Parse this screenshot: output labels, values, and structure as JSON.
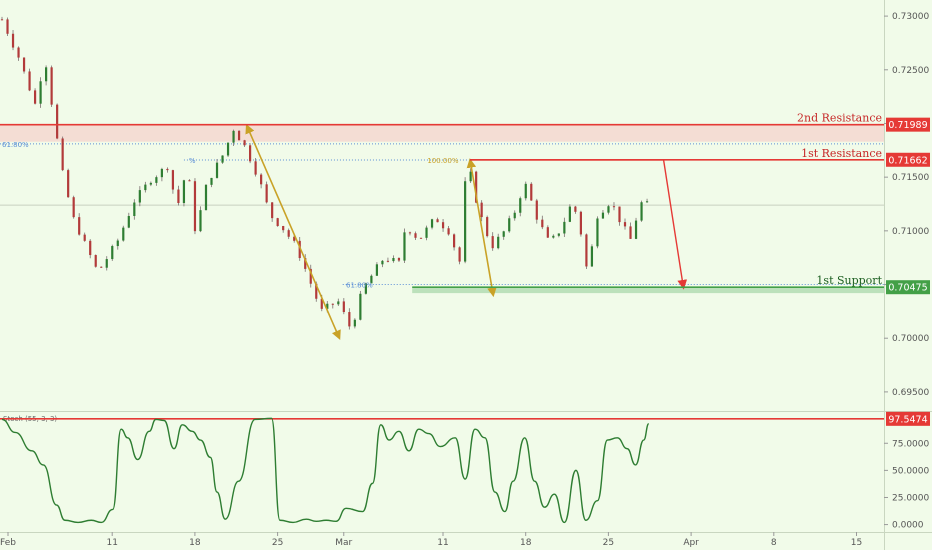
{
  "chart_data": {
    "type": "candlestick",
    "x_tick_labels": [
      "Feb",
      "11",
      "18",
      "25",
      "Mar",
      "11",
      "18",
      "25",
      "Apr",
      "8",
      "15"
    ],
    "y_ticks": [
      "0.73000",
      "0.72500",
      "0.72000",
      "0.71500",
      "0.71000",
      "0.70500",
      "0.70000",
      "0.69500"
    ],
    "ylim": [
      0.6935,
      0.7315
    ],
    "levels": [
      {
        "label": "2nd Resistance",
        "value": "0.71989",
        "color": "#e53935"
      },
      {
        "label": "1st Resistance",
        "value": "0.71662",
        "color": "#e53935"
      },
      {
        "label": "1st Support",
        "value": "0.70475",
        "color": "#43a047"
      }
    ],
    "fib_labels": [
      "61.80%",
      "100.00%",
      "61.80%",
      "%"
    ],
    "price_path": [
      [
        0,
        0.7297
      ],
      [
        1,
        0.7262
      ],
      [
        2,
        0.7218
      ],
      [
        2.6,
        0.7262
      ],
      [
        3.3,
        0.7188
      ],
      [
        3.7,
        0.715
      ],
      [
        4.3,
        0.7112
      ],
      [
        5,
        0.7088
      ],
      [
        5.8,
        0.7061
      ],
      [
        7,
        0.7091
      ],
      [
        8,
        0.7128
      ],
      [
        9,
        0.7148
      ],
      [
        10,
        0.716
      ],
      [
        10.6,
        0.7122
      ],
      [
        11.2,
        0.716
      ],
      [
        11.7,
        0.7098
      ],
      [
        12.4,
        0.7145
      ],
      [
        13.4,
        0.7172
      ],
      [
        14,
        0.7195
      ],
      [
        14.7,
        0.7178
      ],
      [
        15.5,
        0.715
      ],
      [
        16.2,
        0.7115
      ],
      [
        17,
        0.7102
      ],
      [
        17.8,
        0.7085
      ],
      [
        18.4,
        0.7062
      ],
      [
        19.3,
        0.7025
      ],
      [
        20.3,
        0.7035
      ],
      [
        21.1,
        0.7008
      ],
      [
        21.8,
        0.7045
      ],
      [
        22.5,
        0.7062
      ],
      [
        23.1,
        0.7075
      ],
      [
        24,
        0.707
      ],
      [
        24.4,
        0.7105
      ],
      [
        25.2,
        0.7092
      ],
      [
        26.2,
        0.7112
      ],
      [
        27,
        0.71
      ],
      [
        27.7,
        0.707
      ],
      [
        28.1,
        0.7168
      ],
      [
        28.8,
        0.712
      ],
      [
        29.6,
        0.7085
      ],
      [
        30.3,
        0.7098
      ],
      [
        31,
        0.7118
      ],
      [
        31.6,
        0.7145
      ],
      [
        32.4,
        0.711
      ],
      [
        33.1,
        0.7088
      ],
      [
        33.8,
        0.7102
      ],
      [
        34.5,
        0.7128
      ],
      [
        35,
        0.7098
      ],
      [
        35.4,
        0.706
      ],
      [
        36,
        0.7115
      ],
      [
        36.8,
        0.7128
      ],
      [
        37.5,
        0.7105
      ],
      [
        38,
        0.7092
      ],
      [
        38.6,
        0.7126
      ],
      [
        39.1,
        0.7124
      ]
    ],
    "arrows": [
      {
        "from": [
          14.8,
          0.7198
        ],
        "to": [
          20.4,
          0.7
        ]
      },
      {
        "from": [
          28.3,
          0.7166
        ],
        "to": [
          29.7,
          0.704
        ]
      },
      {
        "from": [
          40,
          0.7166
        ],
        "to": [
          41.2,
          0.7047
        ]
      }
    ],
    "oscillator": {
      "label": "Stoch (55, 3, 3)",
      "y_ticks": [
        "75.0000",
        "50.0000",
        "25.0000",
        "0.0000"
      ],
      "ylim": [
        -5,
        102
      ],
      "level": "97.5474",
      "path": [
        [
          0,
          97
        ],
        [
          0.8,
          85
        ],
        [
          1.8,
          68
        ],
        [
          2.5,
          55
        ],
        [
          3.3,
          18
        ],
        [
          3.8,
          4
        ],
        [
          4.6,
          2
        ],
        [
          5.4,
          4
        ],
        [
          6,
          2
        ],
        [
          6.7,
          14
        ],
        [
          7.2,
          88
        ],
        [
          7.6,
          80
        ],
        [
          8.2,
          60
        ],
        [
          8.9,
          86
        ],
        [
          9.3,
          97
        ],
        [
          9.8,
          96
        ],
        [
          10.4,
          70
        ],
        [
          10.9,
          92
        ],
        [
          11.5,
          86
        ],
        [
          12,
          78
        ],
        [
          12.6,
          62
        ],
        [
          13,
          30
        ],
        [
          13.5,
          5
        ],
        [
          14.3,
          40
        ],
        [
          15.3,
          97
        ],
        [
          16.3,
          98
        ],
        [
          16.8,
          4
        ],
        [
          17.6,
          2
        ],
        [
          18.4,
          5
        ],
        [
          19,
          3
        ],
        [
          19.6,
          4
        ],
        [
          20.2,
          3
        ],
        [
          20.8,
          15
        ],
        [
          21.8,
          12
        ],
        [
          22.4,
          38
        ],
        [
          22.9,
          92
        ],
        [
          23.4,
          78
        ],
        [
          24,
          86
        ],
        [
          24.6,
          68
        ],
        [
          25.2,
          88
        ],
        [
          25.8,
          84
        ],
        [
          26.5,
          72
        ],
        [
          27.4,
          80
        ],
        [
          28,
          42
        ],
        [
          28.6,
          88
        ],
        [
          29.2,
          80
        ],
        [
          29.8,
          30
        ],
        [
          30.4,
          12
        ],
        [
          30.9,
          40
        ],
        [
          31.6,
          80
        ],
        [
          32.2,
          40
        ],
        [
          32.8,
          16
        ],
        [
          33.4,
          28
        ],
        [
          34,
          2
        ],
        [
          34.7,
          50
        ],
        [
          35.3,
          4
        ],
        [
          36,
          22
        ],
        [
          36.6,
          78
        ],
        [
          37.2,
          80
        ],
        [
          37.8,
          70
        ],
        [
          38.3,
          55
        ],
        [
          38.8,
          78
        ],
        [
          39.1,
          93
        ]
      ]
    }
  }
}
